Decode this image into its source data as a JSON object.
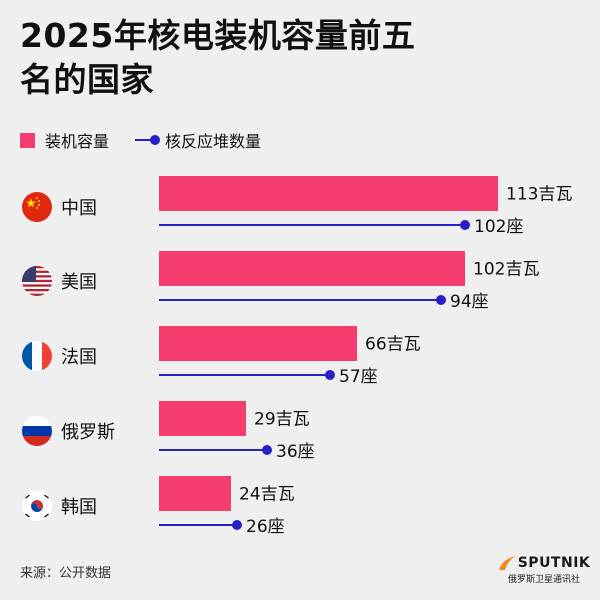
{
  "title_line1": "2025年核电装机容量前五",
  "title_line2": "名的国家",
  "legend": {
    "capacity": "装机容量",
    "reactors": "核反应堆数量"
  },
  "source": "来源：公开数据",
  "brand": {
    "name": "SPUTNIK",
    "sub": "俄罗斯卫星通讯社"
  },
  "colors": {
    "bar": "#f53c6e",
    "line": "#2a1fc4",
    "background": "#efefef"
  },
  "chart_data": {
    "type": "bar",
    "orientation": "horizontal",
    "categories": [
      "中国",
      "美国",
      "法国",
      "俄罗斯",
      "韩国"
    ],
    "series": [
      {
        "name": "装机容量",
        "unit": "吉瓦",
        "values": [
          113,
          102,
          66,
          29,
          24
        ]
      },
      {
        "name": "核反应堆数量",
        "unit": "座",
        "values": [
          102,
          94,
          57,
          36,
          26
        ]
      }
    ],
    "flags": [
      "china-flag-icon",
      "usa-flag-icon",
      "france-flag-icon",
      "russia-flag-icon",
      "korea-flag-icon"
    ]
  }
}
